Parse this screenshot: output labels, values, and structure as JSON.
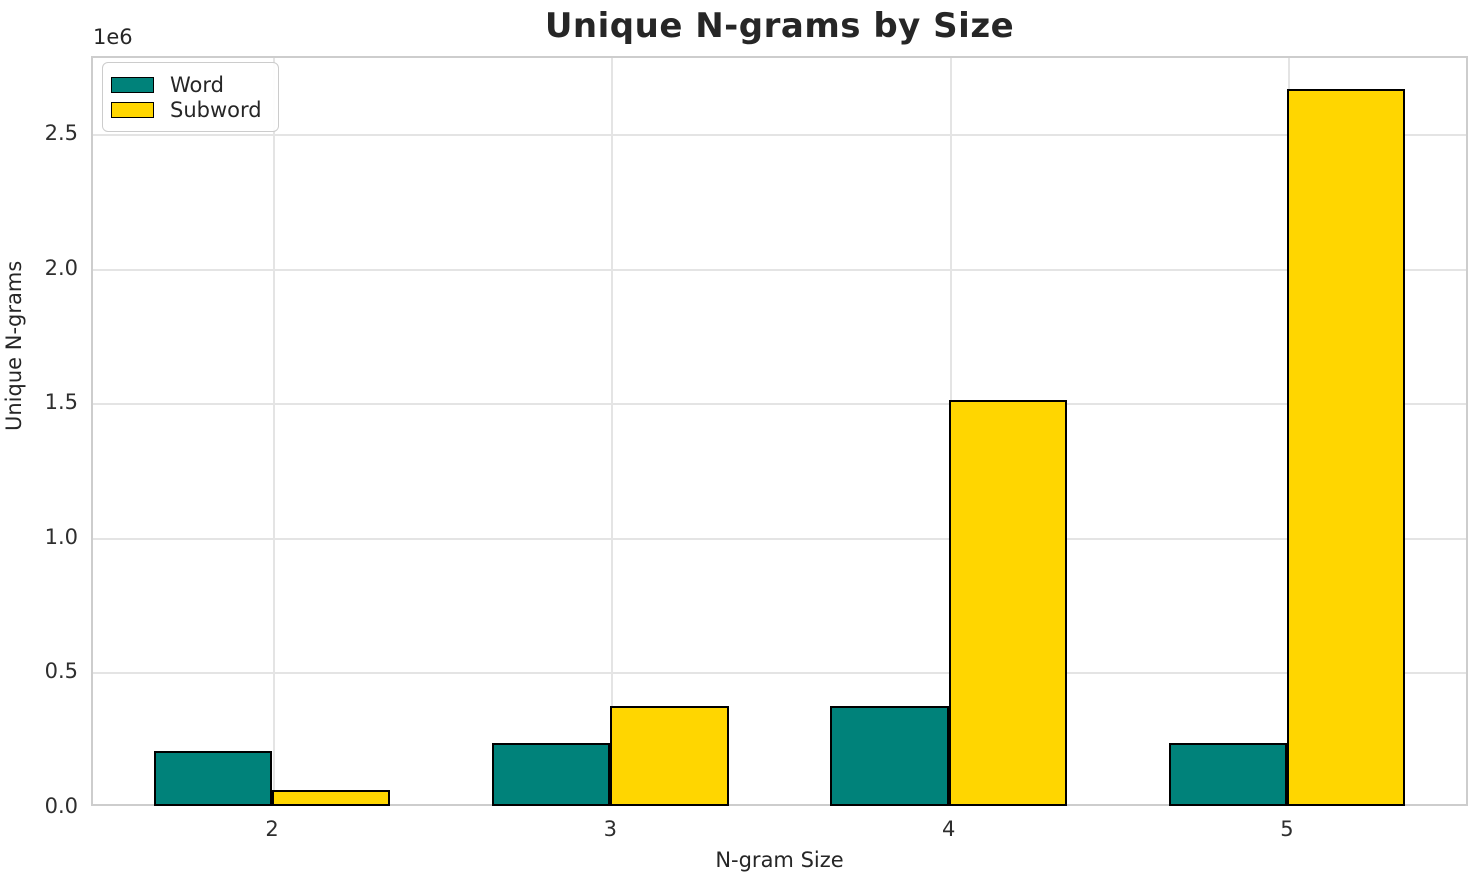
{
  "chart_data": {
    "type": "bar",
    "title": "Unique N-grams by Size",
    "xlabel": "N-gram Size",
    "ylabel": "Unique N-grams",
    "y_offset_label": "1e6",
    "categories": [
      2,
      3,
      4,
      5
    ],
    "series": [
      {
        "name": "Word",
        "color": "#00827A",
        "values": [
          205000,
          235000,
          370000,
          235000
        ]
      },
      {
        "name": "Subword",
        "color": "#FFD600",
        "values": [
          60000,
          370000,
          1510000,
          2665000
        ]
      }
    ],
    "bar_width": 0.35,
    "bar_edge_color": "#000000",
    "xlim": [
      1.465,
      5.535
    ],
    "ylim": [
      0,
      2787000
    ],
    "yticks": {
      "values": [
        0,
        500000,
        1000000,
        1500000,
        2000000,
        2500000
      ],
      "labels": [
        "0.0",
        "0.5",
        "1.0",
        "1.5",
        "2.0",
        "2.5"
      ]
    },
    "xticks": {
      "labels": [
        "2",
        "3",
        "4",
        "5"
      ]
    },
    "grid": true,
    "legend_position": "upper-left"
  }
}
